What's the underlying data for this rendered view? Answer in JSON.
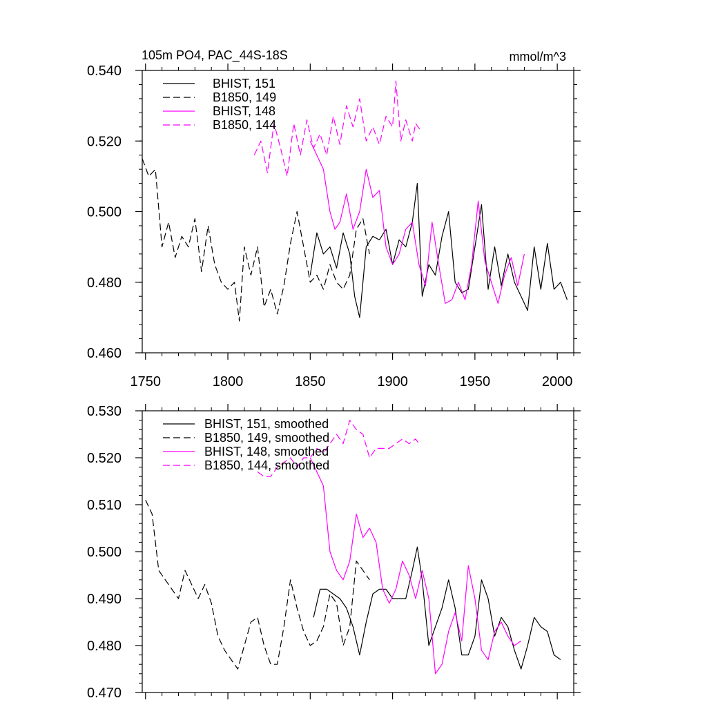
{
  "chart_data": [
    {
      "type": "line",
      "title": "105m PO4, PAC_44S-18S",
      "units": "mmol/m^3",
      "xlabel": "",
      "ylabel": "",
      "xlim": [
        1748,
        2010
      ],
      "ylim": [
        0.46,
        0.54
      ],
      "xticks": [
        1750,
        1800,
        1850,
        1900,
        1950,
        2000
      ],
      "yticks": [
        0.46,
        0.48,
        0.5,
        0.52,
        0.54
      ],
      "ytick_labels": [
        "0.460",
        "0.480",
        "0.500",
        "0.520",
        "0.540"
      ],
      "legend_position": "top-left",
      "series": [
        {
          "name": "BHIST, 151",
          "color": "#000000",
          "dash": "solid",
          "x": [
            1850,
            1854,
            1858,
            1862,
            1866,
            1870,
            1874,
            1877,
            1880,
            1884,
            1888,
            1892,
            1896,
            1900,
            1904,
            1908,
            1912,
            1915,
            1918,
            1922,
            1926,
            1930,
            1934,
            1938,
            1942,
            1946,
            1950,
            1954,
            1958,
            1962,
            1966,
            1970,
            1974,
            1978,
            1982,
            1986,
            1990,
            1994,
            1998,
            2002,
            2006
          ],
          "y": [
            0.482,
            0.494,
            0.488,
            0.49,
            0.484,
            0.494,
            0.488,
            0.476,
            0.47,
            0.49,
            0.493,
            0.492,
            0.495,
            0.485,
            0.492,
            0.49,
            0.497,
            0.508,
            0.476,
            0.485,
            0.482,
            0.493,
            0.5,
            0.48,
            0.477,
            0.478,
            0.49,
            0.502,
            0.478,
            0.49,
            0.479,
            0.488,
            0.48,
            0.476,
            0.472,
            0.49,
            0.478,
            0.491,
            0.478,
            0.48,
            0.475
          ]
        },
        {
          "name": "B1850, 149",
          "color": "#000000",
          "dash": "dashed",
          "x": [
            1748,
            1752,
            1756,
            1760,
            1764,
            1768,
            1772,
            1776,
            1780,
            1784,
            1788,
            1792,
            1796,
            1800,
            1804,
            1807,
            1810,
            1814,
            1818,
            1822,
            1826,
            1830,
            1834,
            1838,
            1842,
            1846,
            1850,
            1854,
            1858,
            1862,
            1866,
            1870,
            1874,
            1878,
            1882,
            1886
          ],
          "y": [
            0.515,
            0.51,
            0.512,
            0.49,
            0.497,
            0.487,
            0.493,
            0.49,
            0.498,
            0.483,
            0.496,
            0.485,
            0.48,
            0.478,
            0.48,
            0.469,
            0.49,
            0.482,
            0.49,
            0.473,
            0.478,
            0.471,
            0.479,
            0.491,
            0.5,
            0.49,
            0.48,
            0.482,
            0.478,
            0.485,
            0.48,
            0.478,
            0.482,
            0.495,
            0.498,
            0.488
          ]
        },
        {
          "name": "BHIST, 148",
          "color": "#ff00ff",
          "dash": "solid",
          "x": [
            1850,
            1854,
            1858,
            1862,
            1865,
            1868,
            1872,
            1876,
            1880,
            1884,
            1888,
            1892,
            1896,
            1900,
            1904,
            1908,
            1912,
            1916,
            1920,
            1924,
            1928,
            1932,
            1936,
            1940,
            1944,
            1948,
            1952,
            1956,
            1960,
            1964,
            1968,
            1972,
            1976,
            1980
          ],
          "y": [
            0.52,
            0.516,
            0.512,
            0.5,
            0.495,
            0.497,
            0.505,
            0.495,
            0.5,
            0.512,
            0.504,
            0.506,
            0.49,
            0.485,
            0.488,
            0.495,
            0.497,
            0.485,
            0.479,
            0.497,
            0.485,
            0.474,
            0.475,
            0.48,
            0.475,
            0.485,
            0.503,
            0.486,
            0.48,
            0.474,
            0.482,
            0.487,
            0.479,
            0.488
          ]
        },
        {
          "name": "B1850, 144",
          "color": "#ff00ff",
          "dash": "dashed",
          "x": [
            1816,
            1820,
            1824,
            1828,
            1832,
            1836,
            1840,
            1844,
            1848,
            1852,
            1856,
            1860,
            1864,
            1868,
            1872,
            1876,
            1880,
            1884,
            1888,
            1892,
            1896,
            1900,
            1902,
            1905,
            1908,
            1912,
            1914,
            1917
          ],
          "y": [
            0.516,
            0.52,
            0.511,
            0.525,
            0.518,
            0.51,
            0.525,
            0.516,
            0.526,
            0.518,
            0.522,
            0.516,
            0.527,
            0.519,
            0.53,
            0.524,
            0.532,
            0.52,
            0.524,
            0.519,
            0.527,
            0.524,
            0.537,
            0.52,
            0.526,
            0.52,
            0.525,
            0.523
          ]
        }
      ]
    },
    {
      "type": "line",
      "title": "",
      "xlabel": "",
      "ylabel": "",
      "xlim": [
        1748,
        2010
      ],
      "ylim": [
        0.47,
        0.53
      ],
      "xticks": [
        1750,
        1800,
        1850,
        1900,
        1950,
        2000
      ],
      "yticks": [
        0.47,
        0.48,
        0.49,
        0.5,
        0.51,
        0.52,
        0.53
      ],
      "ytick_labels": [
        "0.470",
        "0.480",
        "0.490",
        "0.500",
        "0.510",
        "0.520",
        "0.530"
      ],
      "legend_position": "top-left",
      "series": [
        {
          "name": "BHIST, 151, smoothed",
          "color": "#000000",
          "dash": "solid",
          "x": [
            1852,
            1856,
            1860,
            1864,
            1868,
            1872,
            1876,
            1880,
            1884,
            1888,
            1892,
            1896,
            1900,
            1904,
            1908,
            1912,
            1915,
            1918,
            1922,
            1926,
            1930,
            1934,
            1938,
            1942,
            1946,
            1950,
            1954,
            1958,
            1962,
            1966,
            1970,
            1974,
            1978,
            1982,
            1986,
            1990,
            1994,
            1998,
            2002
          ],
          "y": [
            0.486,
            0.492,
            0.492,
            0.491,
            0.49,
            0.488,
            0.484,
            0.478,
            0.485,
            0.491,
            0.492,
            0.492,
            0.49,
            0.49,
            0.49,
            0.496,
            0.501,
            0.494,
            0.48,
            0.484,
            0.488,
            0.494,
            0.488,
            0.478,
            0.478,
            0.482,
            0.494,
            0.49,
            0.482,
            0.486,
            0.484,
            0.479,
            0.475,
            0.48,
            0.486,
            0.484,
            0.483,
            0.478,
            0.477
          ]
        },
        {
          "name": "B1850, 149, smoothed",
          "color": "#000000",
          "dash": "dashed",
          "x": [
            1750,
            1754,
            1758,
            1762,
            1766,
            1770,
            1774,
            1778,
            1782,
            1786,
            1790,
            1794,
            1798,
            1802,
            1806,
            1810,
            1814,
            1818,
            1822,
            1826,
            1830,
            1834,
            1838,
            1842,
            1846,
            1850,
            1854,
            1858,
            1862,
            1866,
            1870,
            1874,
            1878,
            1882,
            1886
          ],
          "y": [
            0.511,
            0.508,
            0.496,
            0.494,
            0.492,
            0.49,
            0.496,
            0.493,
            0.49,
            0.493,
            0.489,
            0.482,
            0.479,
            0.477,
            0.475,
            0.48,
            0.485,
            0.486,
            0.48,
            0.476,
            0.476,
            0.484,
            0.494,
            0.488,
            0.483,
            0.48,
            0.481,
            0.484,
            0.491,
            0.489,
            0.48,
            0.484,
            0.498,
            0.496,
            0.494
          ]
        },
        {
          "name": "BHIST, 148, smoothed",
          "color": "#ff00ff",
          "dash": "solid",
          "x": [
            1850,
            1854,
            1858,
            1862,
            1866,
            1870,
            1874,
            1878,
            1882,
            1886,
            1890,
            1894,
            1898,
            1902,
            1906,
            1910,
            1914,
            1918,
            1922,
            1926,
            1930,
            1934,
            1938,
            1942,
            1946,
            1950,
            1954,
            1958,
            1962,
            1966,
            1970,
            1974,
            1978
          ],
          "y": [
            0.52,
            0.517,
            0.514,
            0.5,
            0.496,
            0.494,
            0.498,
            0.508,
            0.503,
            0.505,
            0.502,
            0.492,
            0.489,
            0.492,
            0.498,
            0.495,
            0.49,
            0.496,
            0.49,
            0.474,
            0.476,
            0.483,
            0.487,
            0.481,
            0.497,
            0.49,
            0.479,
            0.477,
            0.483,
            0.485,
            0.482,
            0.48,
            0.481
          ]
        },
        {
          "name": "B1850, 144, smoothed",
          "color": "#ff00ff",
          "dash": "dashed",
          "x": [
            1818,
            1822,
            1826,
            1830,
            1834,
            1838,
            1842,
            1846,
            1850,
            1854,
            1858,
            1862,
            1866,
            1870,
            1874,
            1878,
            1882,
            1886,
            1890,
            1894,
            1898,
            1902,
            1906,
            1910,
            1914,
            1916
          ],
          "y": [
            0.517,
            0.516,
            0.516,
            0.518,
            0.519,
            0.52,
            0.518,
            0.52,
            0.52,
            0.522,
            0.521,
            0.523,
            0.525,
            0.523,
            0.528,
            0.526,
            0.525,
            0.52,
            0.522,
            0.522,
            0.522,
            0.523,
            0.524,
            0.523,
            0.524,
            0.523
          ]
        }
      ]
    }
  ]
}
